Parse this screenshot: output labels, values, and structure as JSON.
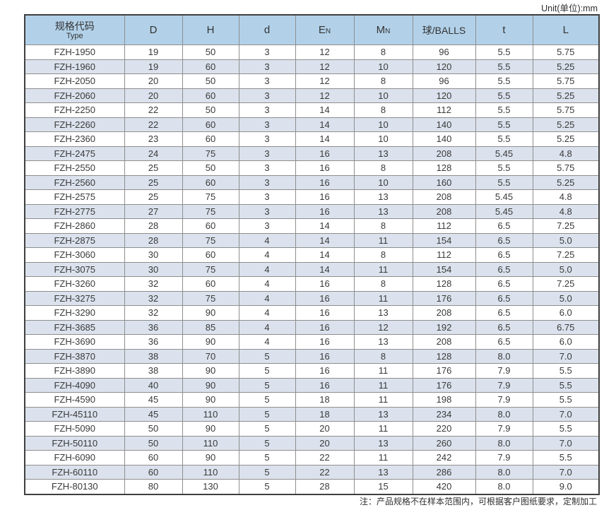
{
  "page": {
    "unit_label": "Unit(单位):mm",
    "note": "注：产品规格不在样本范围内，可根据客户图纸要求，定制加工"
  },
  "table": {
    "columns": [
      {
        "label": "规格代码",
        "sublabel": "Type"
      },
      {
        "label": "D"
      },
      {
        "label": "H"
      },
      {
        "label": "d"
      },
      {
        "label": "E",
        "subscript": "N"
      },
      {
        "label": "M",
        "subscript": "N"
      },
      {
        "label": "球/BALLS"
      },
      {
        "label": "t"
      },
      {
        "label": "L"
      }
    ],
    "rows": [
      [
        "FZH-1950",
        "19",
        "50",
        "3",
        "12",
        "8",
        "96",
        "5.5",
        "5.75"
      ],
      [
        "FZH-1960",
        "19",
        "60",
        "3",
        "12",
        "10",
        "120",
        "5.5",
        "5.25"
      ],
      [
        "FZH-2050",
        "20",
        "50",
        "3",
        "12",
        "8",
        "96",
        "5.5",
        "5.75"
      ],
      [
        "FZH-2060",
        "20",
        "60",
        "3",
        "12",
        "10",
        "120",
        "5.5",
        "5.25"
      ],
      [
        "FZH-2250",
        "22",
        "50",
        "3",
        "14",
        "8",
        "112",
        "5.5",
        "5.75"
      ],
      [
        "FZH-2260",
        "22",
        "60",
        "3",
        "14",
        "10",
        "140",
        "5.5",
        "5.25"
      ],
      [
        "FZH-2360",
        "23",
        "60",
        "3",
        "14",
        "10",
        "140",
        "5.5",
        "5.25"
      ],
      [
        "FZH-2475",
        "24",
        "75",
        "3",
        "16",
        "13",
        "208",
        "5.45",
        "4.8"
      ],
      [
        "FZH-2550",
        "25",
        "50",
        "3",
        "16",
        "8",
        "128",
        "5.5",
        "5.75"
      ],
      [
        "FZH-2560",
        "25",
        "60",
        "3",
        "16",
        "10",
        "160",
        "5.5",
        "5.25"
      ],
      [
        "FZH-2575",
        "25",
        "75",
        "3",
        "16",
        "13",
        "208",
        "5.45",
        "4.8"
      ],
      [
        "FZH-2775",
        "27",
        "75",
        "3",
        "16",
        "13",
        "208",
        "5.45",
        "4.8"
      ],
      [
        "FZH-2860",
        "28",
        "60",
        "3",
        "14",
        "8",
        "112",
        "6.5",
        "7.25"
      ],
      [
        "FZH-2875",
        "28",
        "75",
        "4",
        "14",
        "11",
        "154",
        "6.5",
        "5.0"
      ],
      [
        "FZH-3060",
        "30",
        "60",
        "4",
        "14",
        "8",
        "112",
        "6.5",
        "7.25"
      ],
      [
        "FZH-3075",
        "30",
        "75",
        "4",
        "14",
        "11",
        "154",
        "6.5",
        "5.0"
      ],
      [
        "FZH-3260",
        "32",
        "60",
        "4",
        "16",
        "8",
        "128",
        "6.5",
        "7.25"
      ],
      [
        "FZH-3275",
        "32",
        "75",
        "4",
        "16",
        "11",
        "176",
        "6.5",
        "5.0"
      ],
      [
        "FZH-3290",
        "32",
        "90",
        "4",
        "16",
        "13",
        "208",
        "6.5",
        "6.0"
      ],
      [
        "FZH-3685",
        "36",
        "85",
        "4",
        "16",
        "12",
        "192",
        "6.5",
        "6.75"
      ],
      [
        "FZH-3690",
        "36",
        "90",
        "4",
        "16",
        "13",
        "208",
        "6.5",
        "6.0"
      ],
      [
        "FZH-3870",
        "38",
        "70",
        "5",
        "16",
        "8",
        "128",
        "8.0",
        "7.0"
      ],
      [
        "FZH-3890",
        "38",
        "90",
        "5",
        "16",
        "11",
        "176",
        "7.9",
        "5.5"
      ],
      [
        "FZH-4090",
        "40",
        "90",
        "5",
        "16",
        "11",
        "176",
        "7.9",
        "5.5"
      ],
      [
        "FZH-4590",
        "45",
        "90",
        "5",
        "18",
        "11",
        "198",
        "7.9",
        "5.5"
      ],
      [
        "FZH-45110",
        "45",
        "110",
        "5",
        "18",
        "13",
        "234",
        "8.0",
        "7.0"
      ],
      [
        "FZH-5090",
        "50",
        "90",
        "5",
        "20",
        "11",
        "220",
        "7.9",
        "5.5"
      ],
      [
        "FZH-50110",
        "50",
        "110",
        "5",
        "20",
        "13",
        "260",
        "8.0",
        "7.0"
      ],
      [
        "FZH-6090",
        "60",
        "90",
        "5",
        "22",
        "11",
        "242",
        "7.9",
        "5.5"
      ],
      [
        "FZH-60110",
        "60",
        "110",
        "5",
        "22",
        "13",
        "286",
        "8.0",
        "7.0"
      ],
      [
        "FZH-80130",
        "80",
        "130",
        "5",
        "28",
        "15",
        "420",
        "8.0",
        "9.0"
      ]
    ],
    "colors": {
      "header_bg": "#b2d1e9",
      "alt_row_bg": "#dbe2ed",
      "outer_border": "#3f3f3f",
      "inner_border": "#8e8e8e"
    }
  }
}
